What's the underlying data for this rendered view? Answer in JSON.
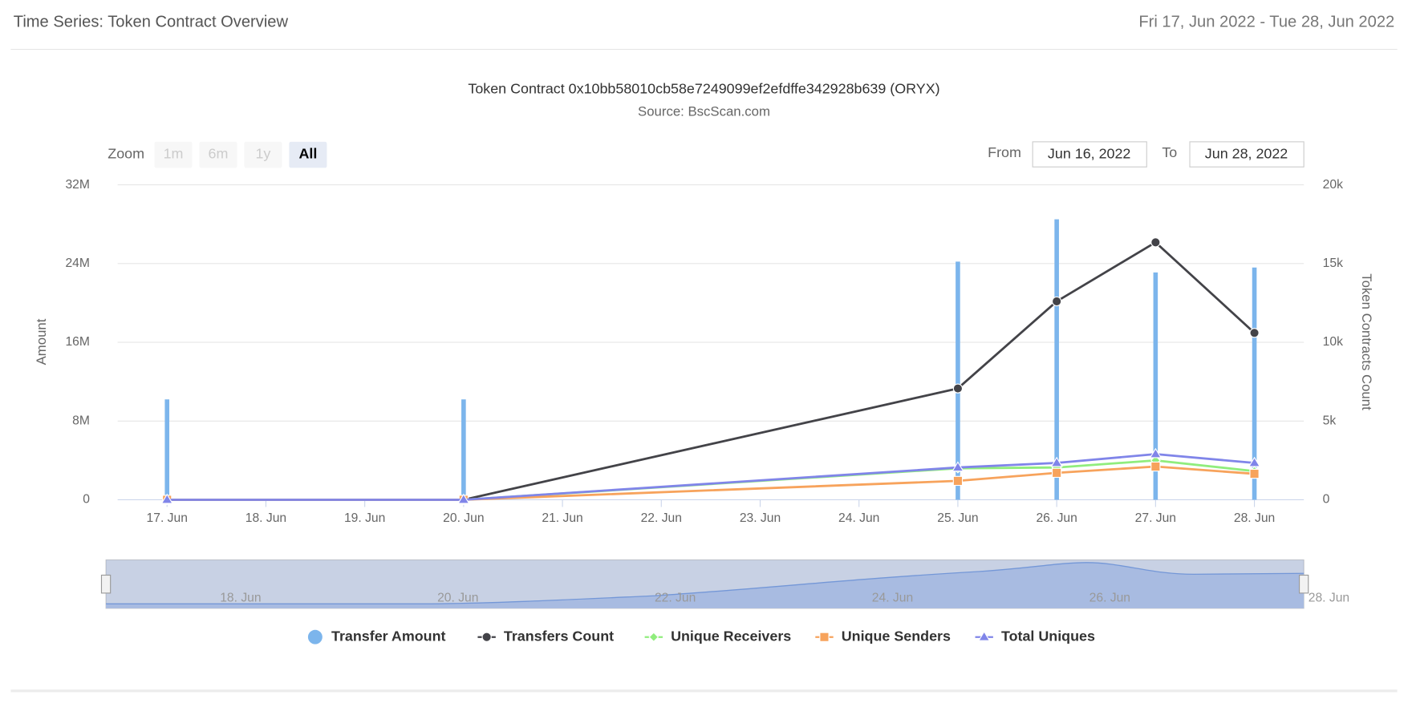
{
  "header": {
    "title": "Time Series: Token Contract Overview",
    "range": "Fri 17, Jun 2022 - Tue 28, Jun 2022"
  },
  "toolbar": {
    "zoom_label": "Zoom",
    "buttons": [
      "1m",
      "6m",
      "1y",
      "All"
    ],
    "from_label": "From",
    "from": "Jun 16, 2022",
    "to_label": "To",
    "to": "Jun 28, 2022"
  },
  "navigator": {
    "labels": [
      "18. Jun",
      "20. Jun",
      "22. Jun",
      "24. Jun",
      "26. Jun",
      "28. Jun"
    ]
  },
  "chart_data": {
    "type": "combo",
    "title": "Token Contract 0x10bb58010cb58e7249099ef2efdffe342928b639 (ORYX)",
    "subtitle": "Source: BscScan.com",
    "y_label": "Amount",
    "y2_label": "Token Contracts Count",
    "xticks": [
      "17. Jun",
      "18. Jun",
      "19. Jun",
      "20. Jun",
      "21. Jun",
      "22. Jun",
      "23. Jun",
      "24. Jun",
      "25. Jun",
      "26. Jun",
      "27. Jun",
      "28. Jun"
    ],
    "x": [
      "17. Jun",
      "20. Jun",
      "25. Jun",
      "26. Jun",
      "27. Jun",
      "28. Jun"
    ],
    "ylim": [
      0,
      32000000
    ],
    "yticks": [
      0,
      {
        "value": 8000000,
        "label": "8M"
      },
      {
        "value": 16000000,
        "label": "16M"
      },
      {
        "value": 24000000,
        "label": "24M"
      },
      {
        "value": 32000000,
        "label": "32M"
      }
    ],
    "y2lim": [
      0,
      20000
    ],
    "y2ticks": [
      0,
      {
        "value": 5000,
        "label": "5k"
      },
      {
        "value": 10000,
        "label": "10k"
      },
      {
        "value": 15000,
        "label": "15k"
      },
      {
        "value": 20000,
        "label": "20k"
      }
    ],
    "grid": true,
    "series": [
      {
        "name": "Transfer Amount",
        "kind": "column",
        "color": "#7cb5ec",
        "values": [
          10200000,
          10200000,
          24200000,
          28500000,
          23100000,
          23600000
        ]
      },
      {
        "name": "Transfers Count",
        "kind": "line",
        "marker": "circle",
        "color": "#434348",
        "axis": "y2",
        "values": [
          0,
          0,
          7070,
          12600,
          16350,
          10600
        ]
      },
      {
        "name": "Unique Receivers",
        "kind": "line",
        "marker": "diamond",
        "color": "#90ed7d",
        "axis": "y2",
        "values": [
          0,
          0,
          2000,
          2050,
          2500,
          1820
        ]
      },
      {
        "name": "Unique Senders",
        "kind": "line",
        "marker": "square",
        "color": "#f7a35c",
        "axis": "y2",
        "values": [
          0,
          0,
          1200,
          1710,
          2110,
          1650
        ]
      },
      {
        "name": "Total Uniques",
        "kind": "line",
        "marker": "triangle",
        "color": "#8085e9",
        "axis": "y2",
        "values": [
          0,
          0,
          2050,
          2340,
          2900,
          2340
        ]
      }
    ]
  }
}
